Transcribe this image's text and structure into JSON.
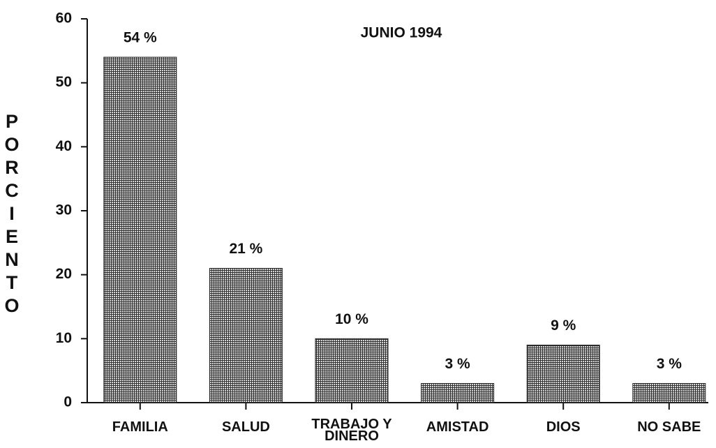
{
  "chart_data": {
    "type": "bar",
    "subtitle": "JUNIO 1994",
    "y_label": "PORCIENTO",
    "categories": [
      "FAMILIA",
      "SALUD",
      "TRABAJO Y DINERO",
      "AMISTAD",
      "DIOS",
      "NO SABE"
    ],
    "values": [
      54,
      21,
      10,
      3,
      9,
      3
    ],
    "value_labels": [
      "54 %",
      "21 %",
      "10 %",
      "3 %",
      "9 %",
      "3 %"
    ],
    "color": "#222222",
    "ylim": [
      0,
      60
    ],
    "yticks": [
      0,
      10,
      20,
      30,
      40,
      50,
      60
    ],
    "grid": false
  }
}
